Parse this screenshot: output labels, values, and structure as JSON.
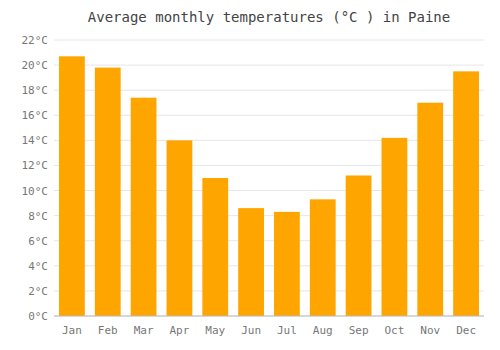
{
  "chart_data": {
    "type": "bar",
    "title": "Average monthly temperatures (°C ) in Paine",
    "categories": [
      "Jan",
      "Feb",
      "Mar",
      "Apr",
      "May",
      "Jun",
      "Jul",
      "Aug",
      "Sep",
      "Oct",
      "Nov",
      "Dec"
    ],
    "values": [
      20.7,
      19.8,
      17.4,
      14.0,
      11.0,
      8.6,
      8.3,
      9.3,
      11.2,
      14.2,
      17.0,
      19.5
    ],
    "color": "#FFA500",
    "ylim": [
      0,
      22
    ],
    "yticks": [
      {
        "value": 0,
        "label": "0°C"
      },
      {
        "value": 2,
        "label": "2°C"
      },
      {
        "value": 4,
        "label": "4°C"
      },
      {
        "value": 6,
        "label": "6°C"
      },
      {
        "value": 8,
        "label": "8°C"
      },
      {
        "value": 10,
        "label": "10°C"
      },
      {
        "value": 12,
        "label": "12°C"
      },
      {
        "value": 14,
        "label": "14°C"
      },
      {
        "value": 16,
        "label": "16°C"
      },
      {
        "value": 18,
        "label": "18°C"
      },
      {
        "value": 20,
        "label": "20°C"
      },
      {
        "value": 22,
        "label": "22°C"
      }
    ],
    "grid": true
  }
}
